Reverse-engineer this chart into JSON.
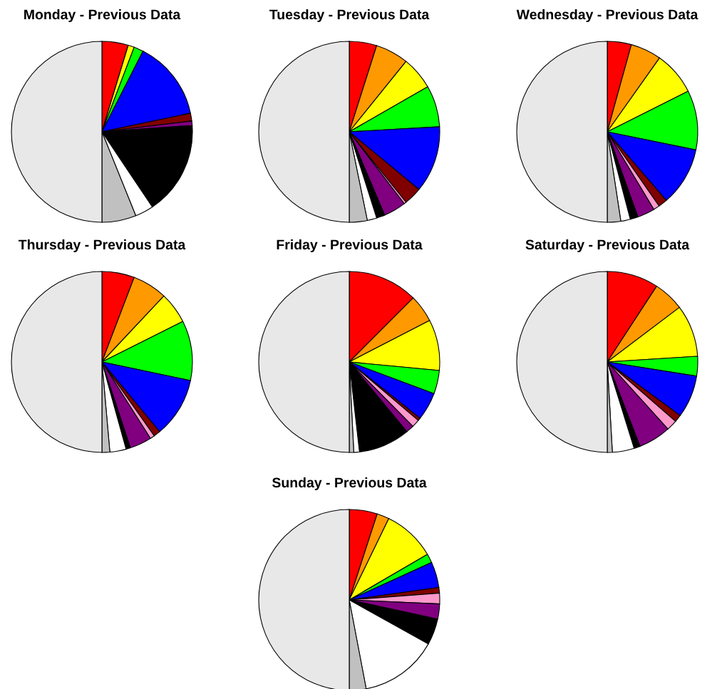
{
  "chart_data": [
    {
      "type": "pie",
      "title": "Monday - Previous Data",
      "categories": [
        null,
        null,
        null,
        null,
        null,
        null,
        null,
        null,
        null,
        null,
        null,
        null
      ],
      "values": [
        4.7,
        0,
        1.1,
        1.7,
        14.2,
        1.4,
        0,
        0.8,
        16.7,
        3.3,
        6.1,
        50
      ],
      "colors": [
        "#ff0000",
        "#ff9900",
        "#ffff00",
        "#00ff00",
        "#0000ff",
        "#800000",
        "#ff99cc",
        "#800080",
        "#000000",
        "#ffffff",
        "#c0c0c0",
        "#e8e8e8"
      ]
    },
    {
      "type": "pie",
      "title": "Tuesday - Previous Data",
      "categories": [
        null,
        null,
        null,
        null,
        null,
        null,
        null,
        null,
        null,
        null,
        null,
        null
      ],
      "values": [
        4.9,
        5.9,
        5.9,
        7.4,
        11.9,
        3.2,
        0.4,
        4.0,
        1.5,
        1.7,
        3.2,
        50
      ],
      "colors": [
        "#ff0000",
        "#ff9900",
        "#ffff00",
        "#00ff00",
        "#0000ff",
        "#800000",
        "#ff99cc",
        "#800080",
        "#000000",
        "#ffffff",
        "#c0c0c0",
        "#e8e8e8"
      ]
    },
    {
      "type": "pie",
      "title": "Wednesday - Previous Data",
      "categories": [
        null,
        null,
        null,
        null,
        null,
        null,
        null,
        null,
        null,
        null,
        null,
        null
      ],
      "values": [
        4.3,
        5.5,
        7.8,
        10.6,
        10.5,
        1.6,
        1.1,
        3.1,
        1.4,
        1.7,
        2.4,
        50
      ],
      "colors": [
        "#ff0000",
        "#ff9900",
        "#ffff00",
        "#00ff00",
        "#0000ff",
        "#800000",
        "#ff99cc",
        "#800080",
        "#000000",
        "#ffffff",
        "#c0c0c0",
        "#e8e8e8"
      ]
    },
    {
      "type": "pie",
      "title": "Thursday - Previous Data",
      "categories": [
        null,
        null,
        null,
        null,
        null,
        null,
        null,
        null,
        null,
        null,
        null,
        null
      ],
      "values": [
        5.8,
        6.2,
        5.6,
        10.7,
        10.7,
        1.2,
        0.8,
        3.9,
        0.8,
        2.9,
        1.4,
        50
      ],
      "colors": [
        "#ff0000",
        "#ff9900",
        "#ffff00",
        "#00ff00",
        "#0000ff",
        "#800000",
        "#ff99cc",
        "#800080",
        "#000000",
        "#ffffff",
        "#c0c0c0",
        "#e8e8e8"
      ]
    },
    {
      "type": "pie",
      "title": "Friday - Previous Data",
      "categories": [
        null,
        null,
        null,
        null,
        null,
        null,
        null,
        null,
        null,
        null,
        null,
        null
      ],
      "values": [
        12.5,
        4.9,
        9.1,
        4.2,
        5.0,
        0.5,
        1.4,
        1.4,
        9.2,
        1.0,
        0.8,
        50
      ],
      "colors": [
        "#ff0000",
        "#ff9900",
        "#ffff00",
        "#00ff00",
        "#0000ff",
        "#800000",
        "#ff99cc",
        "#800080",
        "#000000",
        "#ffffff",
        "#c0c0c0",
        "#e8e8e8"
      ]
    },
    {
      "type": "pie",
      "title": "Saturday - Previous Data",
      "categories": [
        null,
        null,
        null,
        null,
        null,
        null,
        null,
        null,
        null,
        null,
        null,
        null
      ],
      "values": [
        9.2,
        5.5,
        9.3,
        3.5,
        7.6,
        1.3,
        1.9,
        5.8,
        1.1,
        3.9,
        0.9,
        50
      ],
      "colors": [
        "#ff0000",
        "#ff9900",
        "#ffff00",
        "#00ff00",
        "#0000ff",
        "#800000",
        "#ff99cc",
        "#800080",
        "#000000",
        "#ffffff",
        "#c0c0c0",
        "#e8e8e8"
      ]
    },
    {
      "type": "pie",
      "title": "Sunday - Previous Data",
      "categories": [
        null,
        null,
        null,
        null,
        null,
        null,
        null,
        null,
        null,
        null,
        null,
        null
      ],
      "values": [
        5.0,
        2.2,
        9.4,
        1.6,
        4.6,
        1.0,
        1.9,
        2.7,
        4.7,
        13.9,
        3.0,
        50
      ],
      "colors": [
        "#ff0000",
        "#ff9900",
        "#ffff00",
        "#00ff00",
        "#0000ff",
        "#800000",
        "#ff99cc",
        "#800080",
        "#000000",
        "#ffffff",
        "#c0c0c0",
        "#e8e8e8"
      ]
    }
  ]
}
